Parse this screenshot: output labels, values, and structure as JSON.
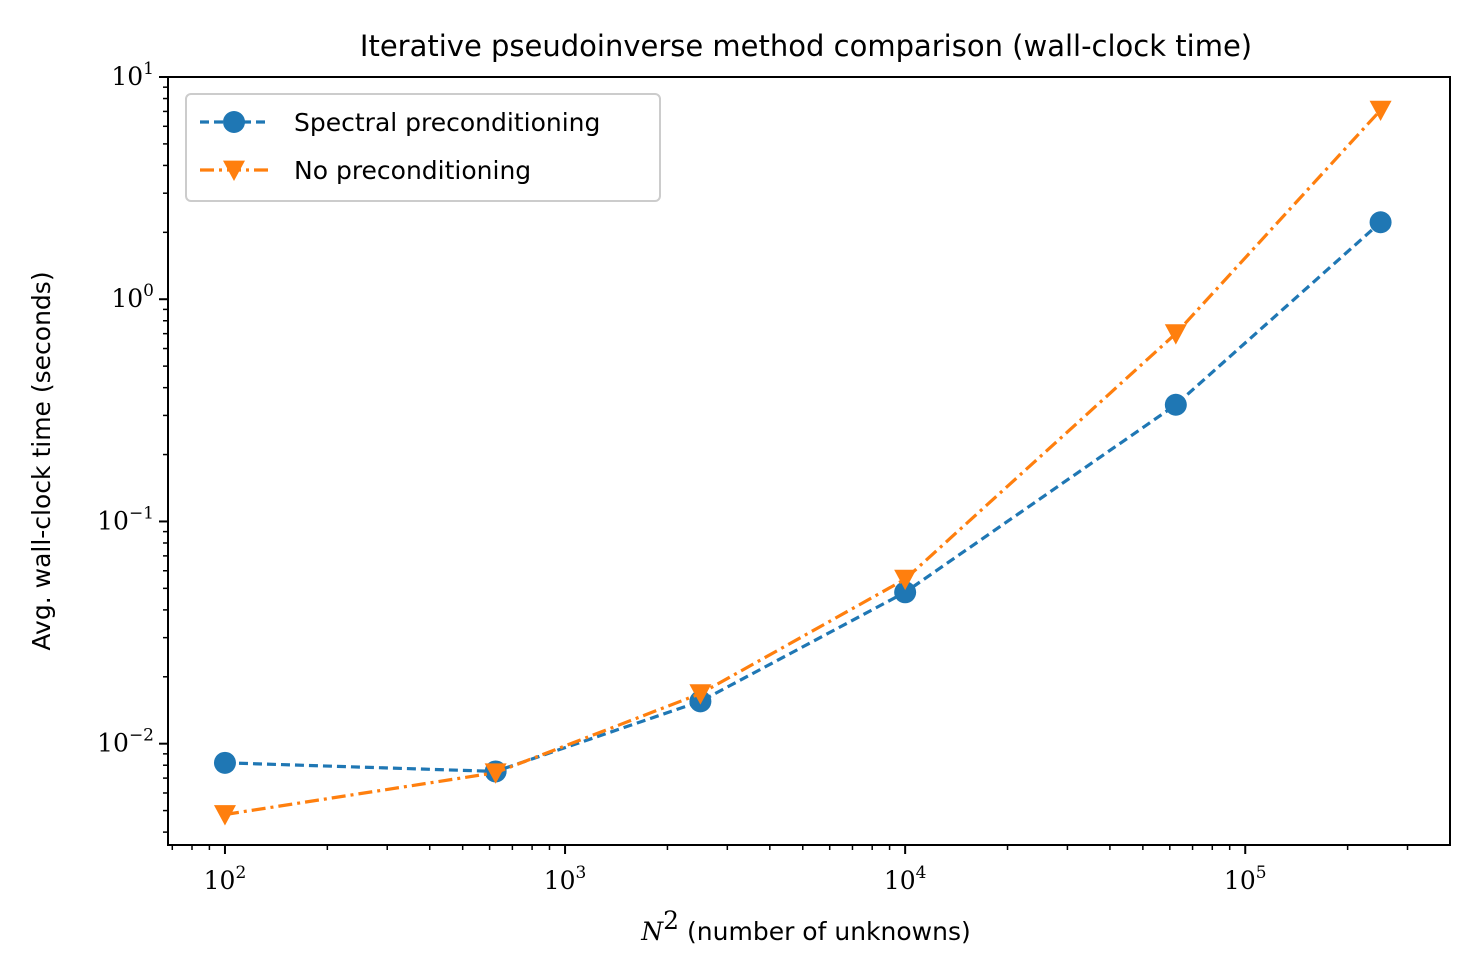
{
  "chart_data": {
    "type": "line",
    "title": "Iterative pseudoinverse method comparison (wall-clock time)",
    "xlabel_math": "N",
    "xlabel_math_sup": "2",
    "xlabel": "(number of unknowns)",
    "ylabel": "Avg. wall-clock time (seconds)",
    "xscale": "log",
    "yscale": "log",
    "xlim": [
      68,
      400000
    ],
    "ylim": [
      0.0035,
      10
    ],
    "grid": false,
    "legend_position": "top-left",
    "x_ticks": [
      {
        "value": 100,
        "base": "10",
        "exp": "2"
      },
      {
        "value": 1000,
        "base": "10",
        "exp": "3"
      },
      {
        "value": 10000,
        "base": "10",
        "exp": "4"
      },
      {
        "value": 100000,
        "base": "10",
        "exp": "5"
      }
    ],
    "y_ticks": [
      {
        "value": 0.01,
        "base": "10",
        "exp": "−2"
      },
      {
        "value": 0.1,
        "base": "10",
        "exp": "−1"
      },
      {
        "value": 1,
        "base": "10",
        "exp": "0"
      },
      {
        "value": 10,
        "base": "10",
        "exp": "1"
      }
    ],
    "x": [
      100,
      625,
      2500,
      10000,
      62500,
      250000
    ],
    "series": [
      {
        "name": "Spectral preconditioning",
        "color": "#1f77b4",
        "marker": "circle",
        "linestyle": "dashed",
        "values": [
          0.0082,
          0.0075,
          0.0155,
          0.048,
          0.335,
          2.22
        ]
      },
      {
        "name": "No preconditioning",
        "color": "#ff7f0e",
        "marker": "triangle-down",
        "linestyle": "dashdot",
        "values": [
          0.0048,
          0.0074,
          0.0168,
          0.055,
          0.7,
          7.1
        ]
      }
    ]
  }
}
